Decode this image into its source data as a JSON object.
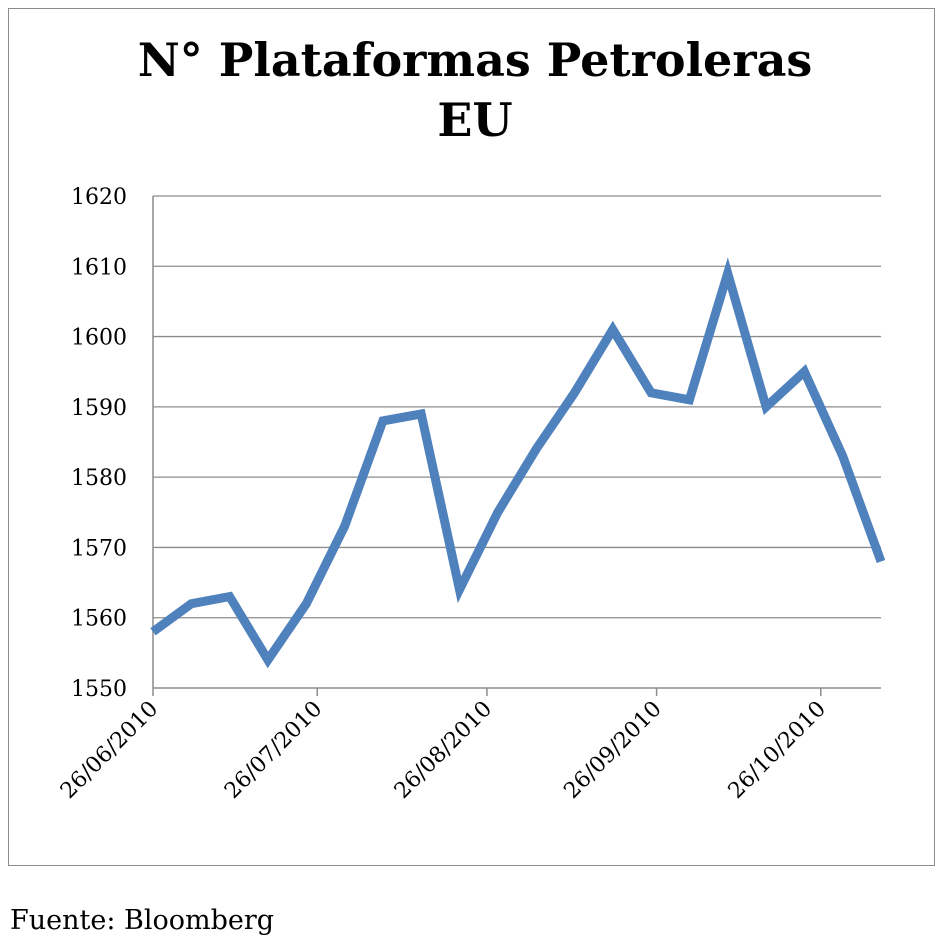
{
  "chart_data": {
    "type": "line",
    "title": "N° Plataformas Petroleras EU",
    "title_lines": [
      "N° Plataformas Petroleras",
      "EU"
    ],
    "xlabel": "",
    "ylabel": "",
    "ylim": [
      1550,
      1620
    ],
    "yticks": [
      1550,
      1560,
      1570,
      1580,
      1590,
      1600,
      1610,
      1620
    ],
    "xticks": [
      "26/06/2010",
      "26/07/2010",
      "26/08/2010",
      "26/09/2010",
      "26/10/2010"
    ],
    "grid": "horizontal",
    "legend": "none",
    "series": [
      {
        "color": "#4f81bd",
        "points": [
          {
            "x": "2010-06-26",
            "y": 1558
          },
          {
            "x": "2010-07-03",
            "y": 1562
          },
          {
            "x": "2010-07-10",
            "y": 1563
          },
          {
            "x": "2010-07-17",
            "y": 1554
          },
          {
            "x": "2010-07-24",
            "y": 1562
          },
          {
            "x": "2010-07-31",
            "y": 1573
          },
          {
            "x": "2010-08-07",
            "y": 1588
          },
          {
            "x": "2010-08-14",
            "y": 1589
          },
          {
            "x": "2010-08-21",
            "y": 1564
          },
          {
            "x": "2010-08-28",
            "y": 1575
          },
          {
            "x": "2010-09-04",
            "y": 1584
          },
          {
            "x": "2010-09-11",
            "y": 1592
          },
          {
            "x": "2010-09-18",
            "y": 1601
          },
          {
            "x": "2010-09-25",
            "y": 1592
          },
          {
            "x": "2010-10-02",
            "y": 1591
          },
          {
            "x": "2010-10-09",
            "y": 1609
          },
          {
            "x": "2010-10-16",
            "y": 1590
          },
          {
            "x": "2010-10-23",
            "y": 1595
          },
          {
            "x": "2010-10-30",
            "y": 1583
          },
          {
            "x": "2010-11-06",
            "y": 1568
          }
        ]
      }
    ]
  },
  "source": "Fuente: Bloomberg"
}
